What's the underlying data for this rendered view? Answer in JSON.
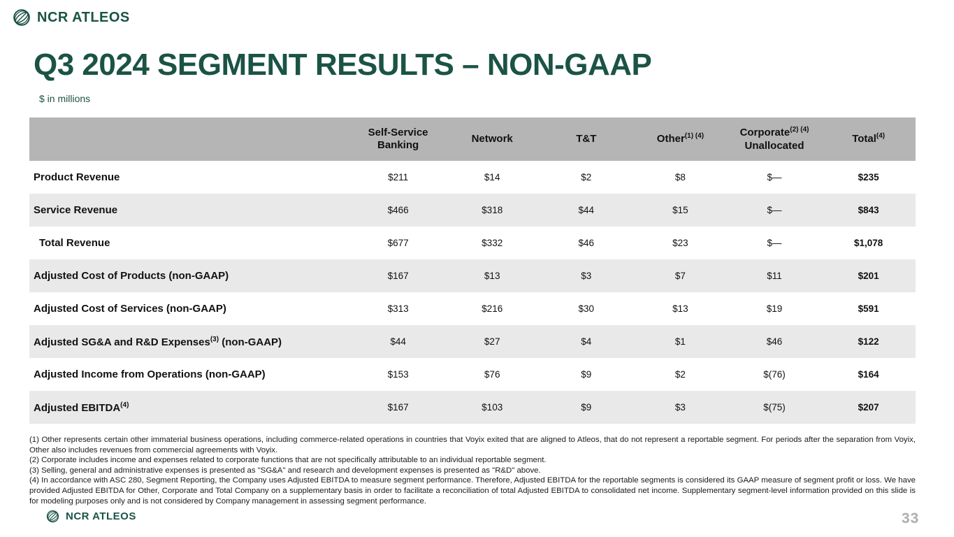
{
  "brand": {
    "name": "NCR ATLEOS"
  },
  "slide": {
    "title": "Q3 2024 SEGMENT RESULTS – NON-GAAP",
    "subtitle": "$ in millions",
    "page_number": "33"
  },
  "colors": {
    "brand_green": "#1B5345",
    "table_header_gray": "#B5B5B5",
    "row_stripe_gray": "#E9E9E9",
    "page_number_gray": "#AEAEAE"
  },
  "icons": {
    "brand_logo": "globe-icon"
  },
  "table": {
    "columns": [
      {
        "line1": "Self-Service",
        "line2": "Banking",
        "sup": ""
      },
      {
        "line1": "Network",
        "line2": "",
        "sup": ""
      },
      {
        "line1": "T&T",
        "line2": "",
        "sup": ""
      },
      {
        "line1": "Other",
        "line2": "",
        "sup": "(1) (4)"
      },
      {
        "line1": "Corporate",
        "line2": "Unallocated",
        "sup": "(2) (4)"
      },
      {
        "line1": "Total",
        "line2": "",
        "sup": "(4)"
      }
    ],
    "rows": [
      {
        "label": "Product Revenue",
        "sup": "",
        "label_after": "",
        "indent": false,
        "values": [
          "$211",
          "$14",
          "$2",
          "$8",
          "$—",
          "$235"
        ]
      },
      {
        "label": "Service Revenue",
        "sup": "",
        "label_after": "",
        "indent": false,
        "values": [
          "$466",
          "$318",
          "$44",
          "$15",
          "$—",
          "$843"
        ]
      },
      {
        "label": "Total Revenue",
        "sup": "",
        "label_after": "",
        "indent": true,
        "values": [
          "$677",
          "$332",
          "$46",
          "$23",
          "$—",
          "$1,078"
        ]
      },
      {
        "label": "Adjusted Cost of Products (non-GAAP)",
        "sup": "",
        "label_after": "",
        "indent": false,
        "values": [
          "$167",
          "$13",
          "$3",
          "$7",
          "$11",
          "$201"
        ]
      },
      {
        "label": "Adjusted Cost of Services (non-GAAP)",
        "sup": "",
        "label_after": "",
        "indent": false,
        "values": [
          "$313",
          "$216",
          "$30",
          "$13",
          "$19",
          "$591"
        ]
      },
      {
        "label": "Adjusted SG&A and R&D Expenses",
        "sup": "(3)",
        "label_after": " (non-GAAP)",
        "indent": false,
        "values": [
          "$44",
          "$27",
          "$4",
          "$1",
          "$46",
          "$122"
        ]
      },
      {
        "label": "Adjusted Income from Operations (non-GAAP)",
        "sup": "",
        "label_after": "",
        "indent": false,
        "values": [
          "$153",
          "$76",
          "$9",
          "$2",
          "$(76)",
          "$164"
        ]
      },
      {
        "label": "Adjusted EBITDA",
        "sup": "(4)",
        "label_after": "",
        "indent": false,
        "values": [
          "$167",
          "$103",
          "$9",
          "$3",
          "$(75)",
          "$207"
        ]
      }
    ]
  },
  "footnotes": [
    "(1) Other represents certain other immaterial business operations, including commerce-related operations in countries that Voyix exited that are aligned to Atleos, that do not represent a reportable segment. For periods after the separation from Voyix, Other also includes revenues from commercial agreements with Voyix.",
    "(2) Corporate includes income and expenses related to corporate functions that are not specifically attributable to an individual reportable segment.",
    "(3) Selling, general and administrative expenses is presented as \"SG&A\" and research and development expenses is presented as \"R&D\" above.",
    "(4) In accordance with ASC 280, Segment Reporting, the Company uses Adjusted EBITDA to measure segment performance. Therefore, Adjusted EBITDA for the reportable segments is considered its GAAP measure of segment profit or loss. We have provided Adjusted EBITDA for Other, Corporate and Total Company on a supplementary basis in order to facilitate a reconciliation of total Adjusted EBITDA to consolidated net income. Supplementary segment-level information provided on this slide is for modeling purposes only and is not considered by Company management in assessing segment performance."
  ]
}
